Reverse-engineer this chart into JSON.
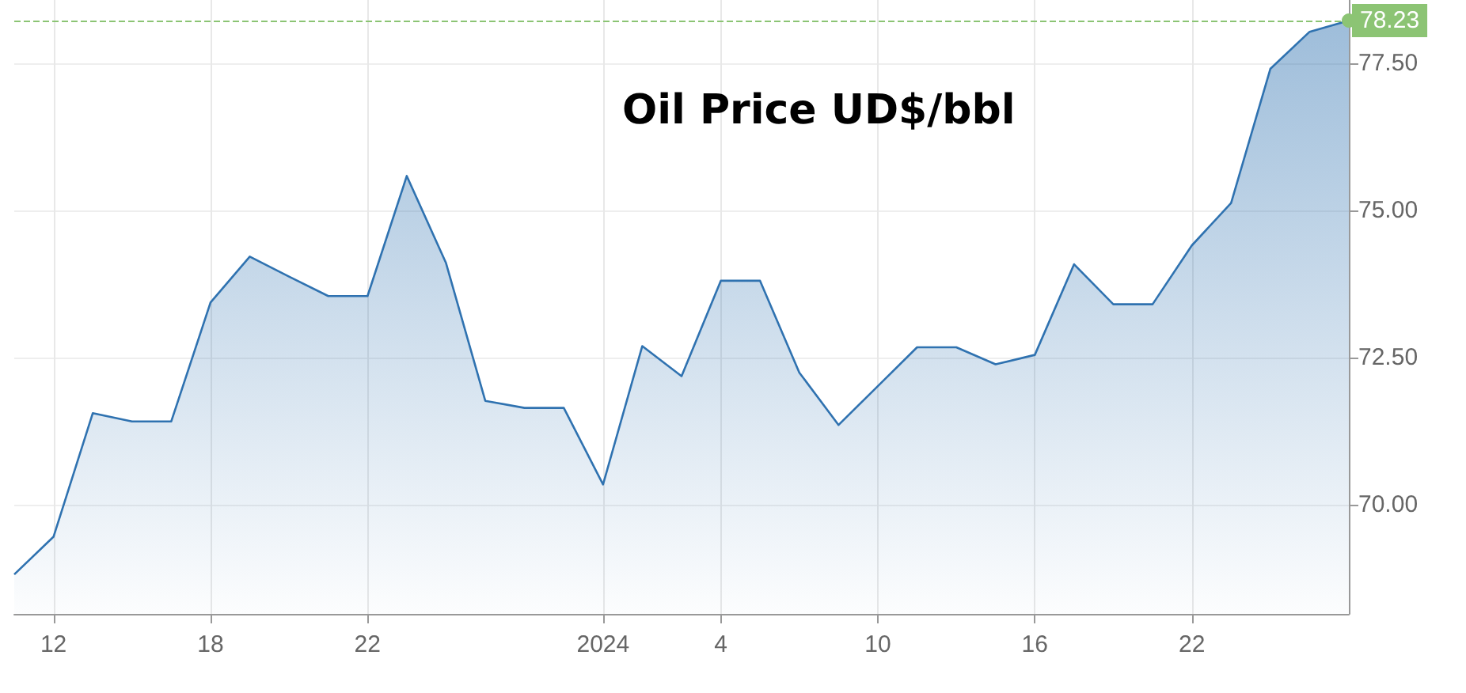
{
  "chart_data": {
    "type": "area",
    "title": "Oil Price UD$/bbl",
    "categories": [
      null,
      "12",
      null,
      null,
      null,
      "18",
      null,
      null,
      null,
      "22",
      null,
      null,
      null,
      null,
      null,
      "2024",
      null,
      null,
      "4",
      null,
      null,
      null,
      "10",
      null,
      null,
      null,
      "16",
      null,
      null,
      null,
      "22",
      null,
      null,
      null,
      null
    ],
    "series": [
      {
        "color": "#2f72b0",
        "values": [
          68.82,
          69.46,
          71.56,
          71.42,
          71.42,
          73.44,
          74.22,
          73.88,
          73.55,
          73.55,
          75.59,
          74.11,
          71.77,
          71.65,
          71.65,
          70.35,
          72.7,
          72.19,
          73.81,
          73.81,
          72.25,
          71.36,
          72.02,
          72.68,
          72.68,
          72.39,
          72.55,
          74.09,
          73.41,
          73.41,
          74.41,
          75.13,
          77.41,
          78.04,
          78.23
        ]
      }
    ],
    "ylim": [
      68.15,
      78.58
    ],
    "yticks": [
      {
        "value": 70,
        "label": "70.00"
      },
      {
        "value": 72.5,
        "label": "72.50"
      },
      {
        "value": 75,
        "label": "75.00"
      },
      {
        "value": 77.5,
        "label": "77.50"
      }
    ],
    "ref_lines": [
      {
        "axis": "y",
        "value": 78.23,
        "label": "78.23",
        "color": "#8cc474",
        "line_style": "dashed"
      }
    ],
    "grid": true
  }
}
